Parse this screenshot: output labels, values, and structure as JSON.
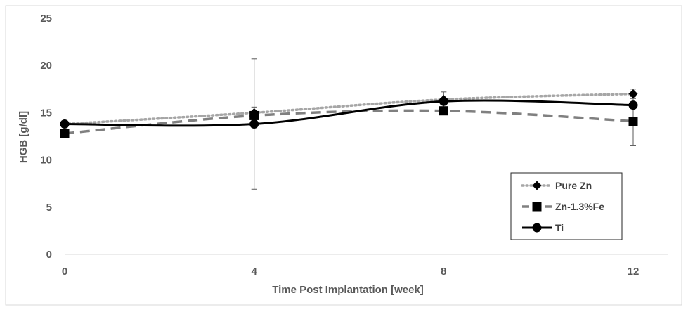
{
  "chart_data": {
    "type": "line",
    "title": "",
    "xlabel": "Time Post Implantation [week]",
    "ylabel": "HGB [g/dl]",
    "x": [
      0,
      4,
      8,
      12
    ],
    "ylim": [
      0,
      25
    ],
    "yticks": [
      0,
      5,
      10,
      15,
      20,
      25
    ],
    "xticks": [
      0,
      4,
      8,
      12
    ],
    "grid": false,
    "legend_position": "bottom-right",
    "series": [
      {
        "name": "Pure Zn",
        "values": [
          13.8,
          15.0,
          16.4,
          17.0
        ],
        "error": [
          0,
          0.6,
          0.8,
          0.5
        ],
        "marker": "diamond",
        "line_style": "dotted",
        "color": "#a6a6a6",
        "marker_color": "#000000"
      },
      {
        "name": "Zn-1.3%Fe",
        "values": [
          12.8,
          14.7,
          15.2,
          14.1
        ],
        "error": [
          0,
          0,
          0,
          2.6
        ],
        "marker": "square",
        "line_style": "dashed",
        "color": "#808080",
        "marker_color": "#000000"
      },
      {
        "name": "Ti",
        "values": [
          13.8,
          13.8,
          16.2,
          15.8
        ],
        "error": [
          0,
          6.9,
          0,
          0
        ],
        "marker": "circle",
        "line_style": "solid",
        "color": "#000000",
        "marker_color": "#000000"
      }
    ]
  }
}
